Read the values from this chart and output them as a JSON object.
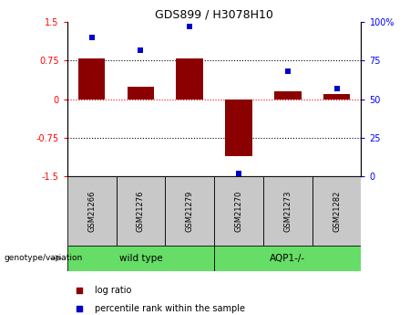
{
  "title": "GDS899 / H3078H10",
  "samples": [
    "GSM21266",
    "GSM21276",
    "GSM21279",
    "GSM21270",
    "GSM21273",
    "GSM21282"
  ],
  "log_ratios": [
    0.8,
    0.25,
    0.8,
    -1.1,
    0.15,
    0.1
  ],
  "percentile_ranks": [
    90,
    82,
    97,
    2,
    68,
    57
  ],
  "group_labels": [
    "wild type",
    "AQP1-/-"
  ],
  "group_color": "#66DD66",
  "bar_color": "#8B0000",
  "point_color": "#0000CC",
  "left_ylim": [
    -1.5,
    1.5
  ],
  "right_ylim": [
    0,
    100
  ],
  "left_yticks": [
    -1.5,
    -0.75,
    0,
    0.75,
    1.5
  ],
  "right_yticks": [
    0,
    25,
    50,
    75,
    100
  ],
  "right_yticklabels": [
    "0",
    "25",
    "50",
    "75",
    "100%"
  ],
  "hline_dotted_vals": [
    0.75,
    -0.75
  ],
  "hline_red_val": 0,
  "legend_log_ratio": "log ratio",
  "legend_percentile": "percentile rank within the sample",
  "genotype_label": "genotype/variation",
  "sample_box_color": "#C8C8C8"
}
